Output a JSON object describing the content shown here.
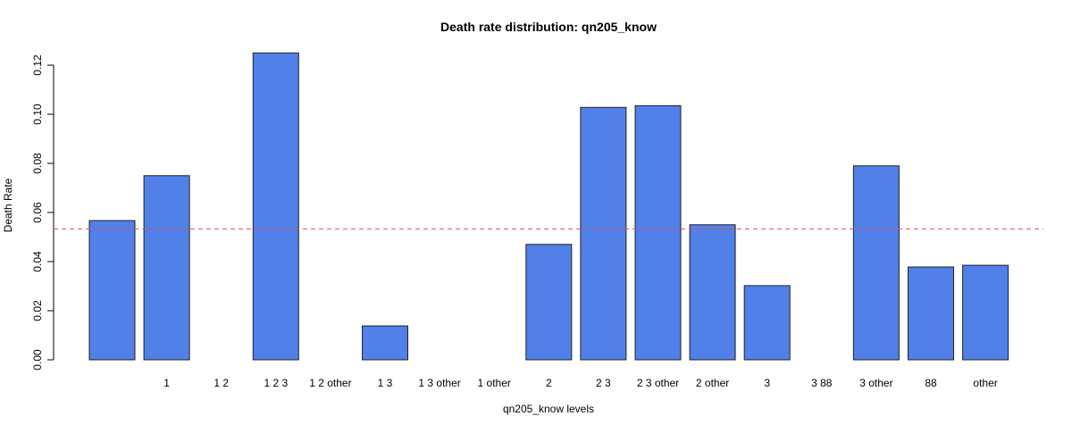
{
  "chart_data": {
    "type": "bar",
    "title": "Death rate distribution: qn205_know",
    "xlabel": "qn205_know levels",
    "ylabel": "Death Rate",
    "ylim": [
      0,
      0.12
    ],
    "yticks": [
      "0.00",
      "0.02",
      "0.04",
      "0.06",
      "0.08",
      "0.10",
      "0.12"
    ],
    "categories": [
      "",
      "1",
      "1 2",
      "1 2 3",
      "1 2 other",
      "1 3",
      "1 3 other",
      "1 other",
      "2",
      "2 3",
      "2 3 other",
      "2 other",
      "3",
      "3 88",
      "3 other",
      "88",
      "other"
    ],
    "values": [
      0.0567,
      0.075,
      0.0,
      0.125,
      0.0,
      0.0138,
      0.0,
      0.0,
      0.047,
      0.1028,
      0.1035,
      0.055,
      0.0302,
      0.0,
      0.079,
      0.0378,
      0.0385
    ],
    "reference_line": 0.0533,
    "grid": false,
    "colors": {
      "bar_fill": "#5080E8",
      "bar_stroke": "#222222",
      "reference_line": "#E05050"
    }
  }
}
